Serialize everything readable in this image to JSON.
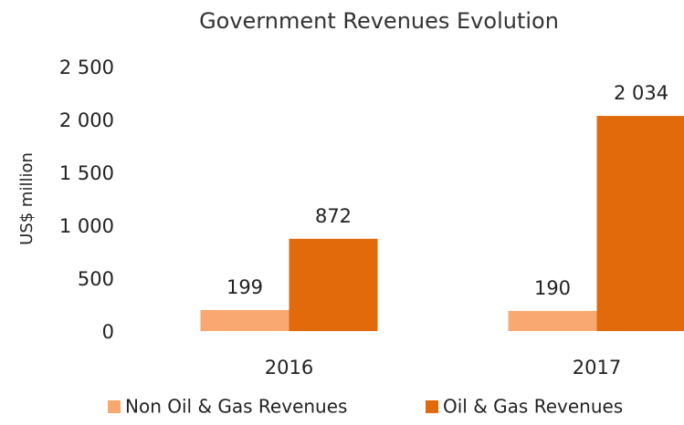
{
  "chart_data": {
    "type": "bar",
    "title": "Government Revenues Evolution",
    "y_label": "US$ million",
    "categories": [
      "2016",
      "2017"
    ],
    "series": [
      {
        "name": "Non Oil & Gas Revenues",
        "color": "#f8a870",
        "values": [
          199,
          190
        ]
      },
      {
        "name": "Oil & Gas Revenues",
        "color": "#e36a0b",
        "values": [
          872,
          2034
        ],
        "value_labels": [
          "872",
          "2 034"
        ]
      }
    ],
    "ylim": [
      0,
      2500
    ],
    "yticks": [
      {
        "value": 0,
        "label": "0"
      },
      {
        "value": 500,
        "label": "500"
      },
      {
        "value": 1000,
        "label": "1 000"
      },
      {
        "value": 1500,
        "label": "1 500"
      },
      {
        "value": 2000,
        "label": "2 000"
      },
      {
        "value": 2500,
        "label": "2 500"
      }
    ],
    "grid": false,
    "legend": "bottom"
  }
}
